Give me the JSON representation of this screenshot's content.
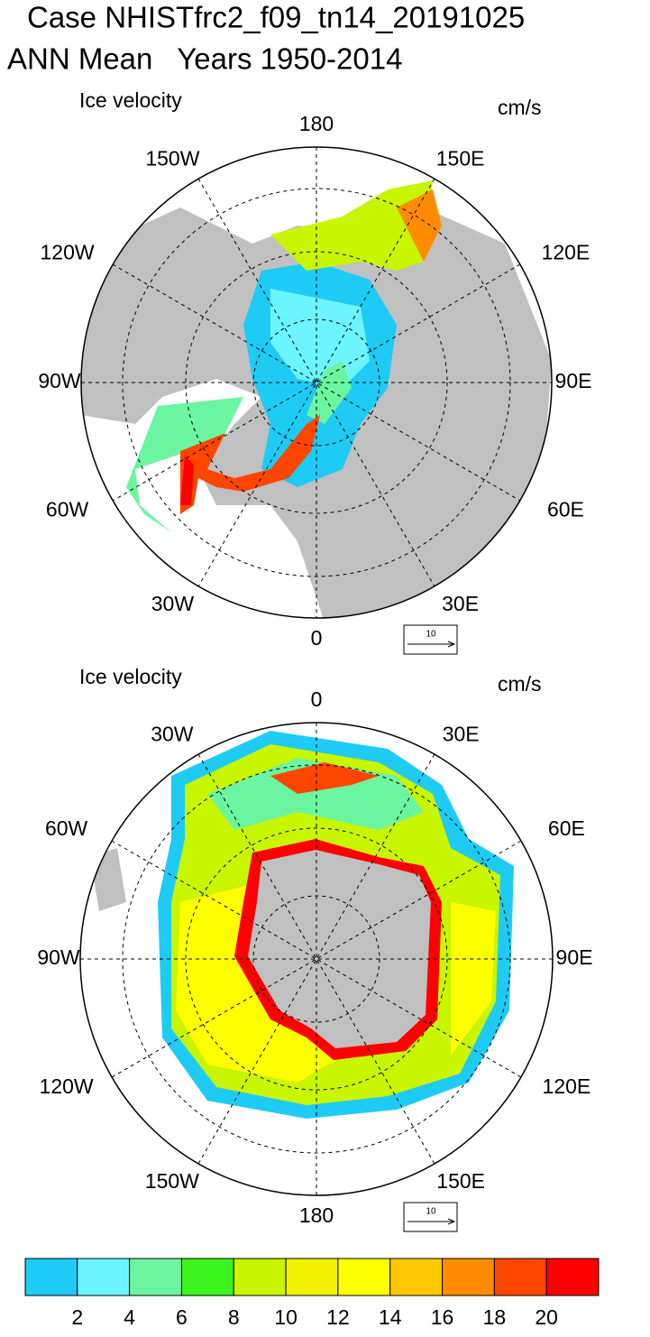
{
  "title": {
    "line1": "Case NHISTfrc2_f09_tn14_20191025",
    "line2": "ANN Mean   Years 1950-2014"
  },
  "panels": [
    {
      "label": "Ice velocity",
      "units": "cm/s",
      "ref_vector": "10",
      "lon_labels": [
        "180",
        "150E",
        "120E",
        "90E",
        "60E",
        "30E",
        "0",
        "30W",
        "60W",
        "90W",
        "120W",
        "150W"
      ]
    },
    {
      "label": "Ice velocity",
      "units": "cm/s",
      "ref_vector": "10",
      "lon_labels": [
        "0",
        "30E",
        "60E",
        "90E",
        "120E",
        "150E",
        "180",
        "150W",
        "120W",
        "90W",
        "60W",
        "30W"
      ]
    }
  ],
  "colorbar": {
    "colors": [
      "#1ecbf5",
      "#6cf5ff",
      "#6cf5a0",
      "#3cf51e",
      "#c8f500",
      "#f0f000",
      "#ffff00",
      "#ffc800",
      "#ff8c00",
      "#ff4600",
      "#ff0000"
    ],
    "labels": [
      2,
      4,
      6,
      8,
      10,
      12,
      14,
      16,
      18,
      20
    ]
  }
}
